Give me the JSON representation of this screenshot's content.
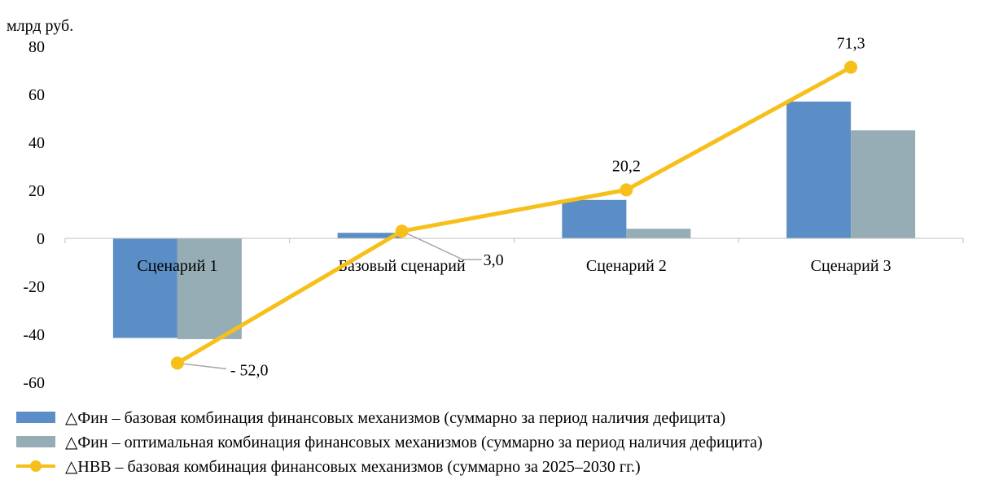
{
  "chart_data": {
    "type": "bar",
    "unit_label": "млрд руб.",
    "categories": [
      "Сценарий 1",
      "Базовый сценарий",
      "Сценарий 2",
      "Сценарий 3"
    ],
    "ylim": [
      -60,
      80
    ],
    "yticks": [
      80,
      60,
      40,
      20,
      0,
      -20,
      -40,
      -60
    ],
    "grid": false,
    "legend_position": "bottom",
    "series": [
      {
        "name": "△Фин – базовая комбинация финансовых механизмов (суммарно за период наличия дефицита)",
        "kind": "bar",
        "color": "#5b8ec6",
        "values": [
          -41.5,
          2.3,
          16.0,
          57.0
        ]
      },
      {
        "name": "△Фин – оптимальная комбинация финансовых механизмов (суммарно за период наличия дефицита)",
        "kind": "bar",
        "color": "#96adb5",
        "values": [
          -42.0,
          0,
          4.0,
          45.0
        ]
      },
      {
        "name": "△НВВ – базовая комбинация финансовых механизмов (суммарно за 2025–2030 гг.)",
        "kind": "line",
        "color": "#f7bf1a",
        "values": [
          -52.0,
          3.0,
          20.2,
          71.3
        ],
        "labels": [
          "- 52,0",
          "3,0",
          "20,2",
          "71,3"
        ]
      }
    ]
  }
}
